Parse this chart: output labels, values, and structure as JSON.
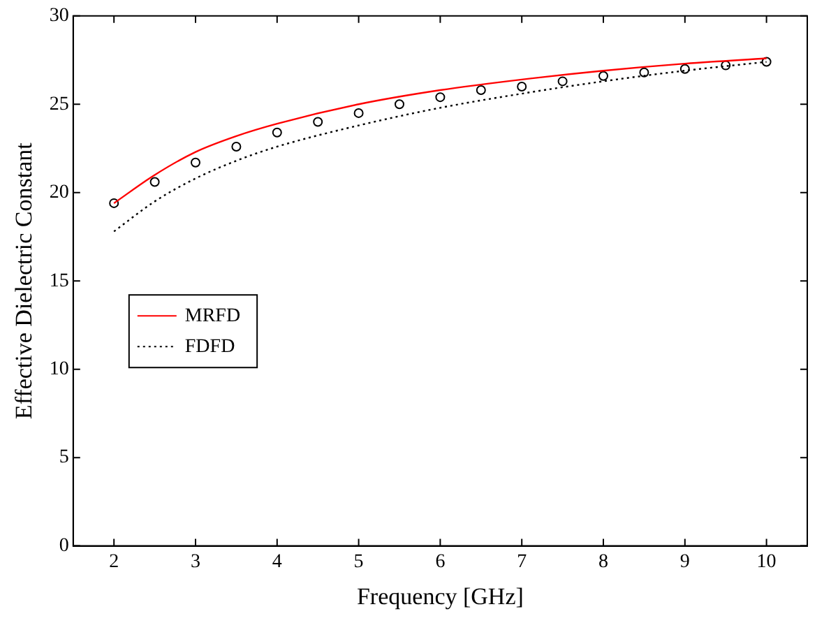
{
  "chart_data": {
    "type": "line",
    "xlabel": "Frequency [GHz]",
    "ylabel": "Effective Dielectric Constant",
    "xlim": [
      1.5,
      10.5
    ],
    "xticks": [
      2,
      3,
      4,
      5,
      6,
      7,
      8,
      9,
      10
    ],
    "ylim": [
      0,
      30
    ],
    "yticks": [
      0,
      5,
      10,
      15,
      20,
      25,
      30
    ],
    "legend": "left",
    "series": [
      {
        "name": "MRFD",
        "color": "#ff0000",
        "line_style": "solid",
        "marker": "none",
        "x": [
          2,
          2.5,
          3,
          3.5,
          4,
          5,
          6,
          7,
          8,
          9,
          10
        ],
        "values": [
          19.4,
          21.0,
          22.3,
          23.2,
          23.9,
          25.0,
          25.8,
          26.4,
          26.9,
          27.3,
          27.6
        ]
      },
      {
        "name": "FDFD",
        "color": "#000000",
        "line_style": "dotted",
        "marker": "none",
        "x": [
          2,
          2.5,
          3,
          3.5,
          4,
          5,
          6,
          7,
          8,
          9,
          10
        ],
        "values": [
          17.8,
          19.5,
          20.8,
          21.8,
          22.6,
          23.8,
          24.8,
          25.6,
          26.3,
          26.9,
          27.4
        ]
      },
      {
        "type": "scatter",
        "color": "#000000",
        "marker": "circle",
        "x": [
          2,
          2.5,
          3,
          3.5,
          4,
          4.5,
          5,
          5.5,
          6,
          6.5,
          7,
          7.5,
          8,
          8.5,
          9,
          9.5,
          10
        ],
        "values": [
          19.4,
          20.6,
          21.7,
          22.6,
          23.4,
          24.0,
          24.5,
          25.0,
          25.4,
          25.8,
          26.0,
          26.3,
          26.6,
          26.8,
          27.0,
          27.2,
          27.4
        ]
      }
    ]
  }
}
